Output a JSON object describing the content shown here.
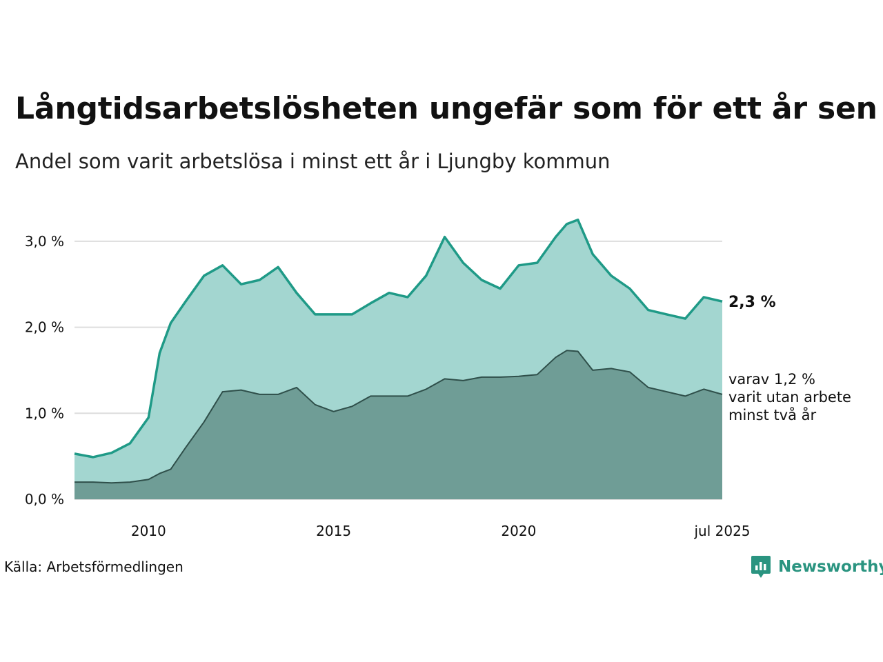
{
  "header": {
    "title": "Långtidsarbetslösheten ungefär som för ett år sen",
    "subtitle": "Andel som varit arbetslösa i minst ett år i Ljungby kommun"
  },
  "footer": {
    "source": "Källa: Arbetsförmedlingen",
    "logo_text": "Newsworthy"
  },
  "colors": {
    "total_line": "#1f9a87",
    "total_fill": "#a3d6d0",
    "sub_line": "#2f4f4a",
    "sub_fill": "#6f9d96",
    "grid": "#dddddd",
    "brand": "#2a9480"
  },
  "chart_data": {
    "type": "area",
    "title": "",
    "xlabel": "",
    "ylabel": "",
    "x_range": [
      2008.0,
      2025.5
    ],
    "ylim": [
      0,
      3.4
    ],
    "y_ticks": [
      0,
      1,
      2,
      3
    ],
    "y_tick_labels": [
      "0,0 %",
      "1,0 %",
      "2,0 %",
      "3,0 %"
    ],
    "x_ticks": [
      2010,
      2015,
      2020,
      2025.5
    ],
    "x_tick_labels": [
      "2010",
      "2015",
      "2020",
      "jul 2025"
    ],
    "grid": "horizontal",
    "end_label": "2,3 %",
    "note_lines": [
      "varav 1,2 %",
      "varit utan arbete",
      "minst två år"
    ],
    "x": [
      2008.0,
      2008.5,
      2009.0,
      2009.5,
      2010.0,
      2010.3,
      2010.6,
      2011.0,
      2011.5,
      2012.0,
      2012.5,
      2013.0,
      2013.5,
      2014.0,
      2014.5,
      2015.0,
      2015.5,
      2016.0,
      2016.5,
      2017.0,
      2017.5,
      2018.0,
      2018.5,
      2019.0,
      2019.5,
      2020.0,
      2020.5,
      2021.0,
      2021.3,
      2021.6,
      2022.0,
      2022.5,
      2023.0,
      2023.5,
      2024.0,
      2024.5,
      2025.0,
      2025.5
    ],
    "series": [
      {
        "values": [
          0.53,
          0.49,
          0.54,
          0.65,
          0.95,
          1.7,
          2.05,
          2.3,
          2.6,
          2.72,
          2.5,
          2.55,
          2.7,
          2.4,
          2.15,
          2.15,
          2.15,
          2.28,
          2.4,
          2.35,
          2.6,
          3.05,
          2.75,
          2.55,
          2.45,
          2.72,
          2.75,
          3.05,
          3.2,
          3.25,
          2.85,
          2.6,
          2.45,
          2.2,
          2.15,
          2.1,
          2.35,
          2.3
        ]
      },
      {
        "values": [
          0.2,
          0.2,
          0.19,
          0.2,
          0.23,
          0.3,
          0.35,
          0.6,
          0.9,
          1.25,
          1.27,
          1.22,
          1.22,
          1.3,
          1.1,
          1.02,
          1.08,
          1.2,
          1.2,
          1.2,
          1.28,
          1.4,
          1.38,
          1.42,
          1.42,
          1.43,
          1.45,
          1.65,
          1.73,
          1.72,
          1.5,
          1.52,
          1.48,
          1.3,
          1.25,
          1.2,
          1.28,
          1.22
        ]
      }
    ]
  }
}
